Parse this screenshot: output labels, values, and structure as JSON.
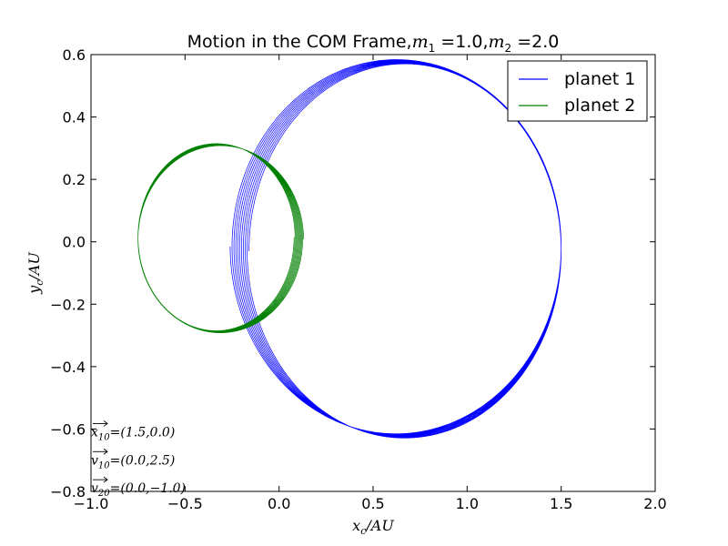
{
  "chart_data": {
    "type": "line",
    "title": "Motion in the COM Frame,",
    "title_math": [
      "m",
      "1",
      " =1.0,",
      "m",
      "2",
      " =2.0"
    ],
    "xlabel": {
      "base": "x",
      "sub": "c",
      "rest": "/AU"
    },
    "ylabel": {
      "base": "y",
      "sub": "c",
      "rest": "/AU"
    },
    "xlim": [
      -1.0,
      2.0
    ],
    "ylim": [
      -0.8,
      0.6
    ],
    "xticks": [
      -1.0,
      -0.5,
      0.0,
      0.5,
      1.0,
      1.5,
      2.0
    ],
    "yticks": [
      -0.8,
      -0.6,
      -0.4,
      -0.2,
      0.0,
      0.2,
      0.4,
      0.6
    ],
    "xtick_labels": [
      "−1.0",
      "−0.5",
      "0.0",
      "0.5",
      "1.0",
      "1.5",
      "2.0"
    ],
    "ytick_labels": [
      "−0.8",
      "−0.6",
      "−0.4",
      "−0.2",
      "0.0",
      "0.2",
      "0.4",
      "0.6"
    ],
    "grid": false,
    "legend": "top-right",
    "series": [
      {
        "name": "planet 1",
        "color": "#0000ff",
        "kind": "precessing-ellipse",
        "center_start": [
          0.62,
          -0.015
        ],
        "center_end": [
          0.67,
          -0.03
        ],
        "semi_x_start": 0.88,
        "semi_x_end": 0.83,
        "semi_y": 0.6,
        "phase_offset": 3.14159,
        "turns": 10
      },
      {
        "name": "planet 2",
        "color": "#008000",
        "kind": "precessing-ellipse",
        "center_start": [
          -0.31,
          0.008
        ],
        "center_end": [
          -0.335,
          0.015
        ],
        "semi_x_start": 0.44,
        "semi_x_end": 0.415,
        "semi_y": 0.3,
        "phase_offset": 0,
        "turns": 10
      }
    ],
    "annotations": [
      {
        "base": "x",
        "sub": "10",
        "value": "=(1.5,0.0)",
        "x": -1.0,
        "y": -0.6
      },
      {
        "base": "v",
        "sub": "10",
        "value": "=(0.0,2.5)",
        "x": -1.0,
        "y": -0.69
      },
      {
        "base": "v",
        "sub": "20",
        "value": "=(0.0,−1.0)",
        "x": -1.0,
        "y": -0.78
      }
    ]
  }
}
